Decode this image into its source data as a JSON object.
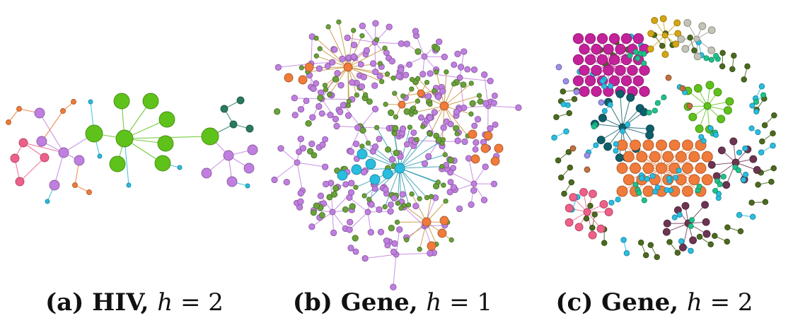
{
  "palette": {
    "green": "#5fc21a",
    "purple": "#c07fe0",
    "pink": "#ef6088",
    "orange": "#f07b3a",
    "cyan": "#29bde0",
    "dark_green": "#4b6a1f",
    "olive_green": "#6aa23a",
    "magenta": "#c3229a",
    "teal": "#0f5f6b",
    "plum": "#6b3552",
    "gold": "#d4a612",
    "gray": "#c3c3b8",
    "sea_green": "#1fc28a",
    "lavender": "#9a8fe8",
    "brown": "#c07040",
    "dark_teal": "#2a7a60"
  },
  "panels": [
    {
      "id": "a",
      "caption": {
        "label": "(a) HIV, ",
        "var": "h",
        "eq": " = ",
        "value": "2"
      }
    },
    {
      "id": "b",
      "caption": {
        "label": "(b) Gene, ",
        "var": "h",
        "eq": " = ",
        "value": "1"
      }
    },
    {
      "id": "c",
      "caption": {
        "label": "(c) Gene, ",
        "var": "h",
        "eq": " = ",
        "value": "2"
      }
    }
  ]
}
